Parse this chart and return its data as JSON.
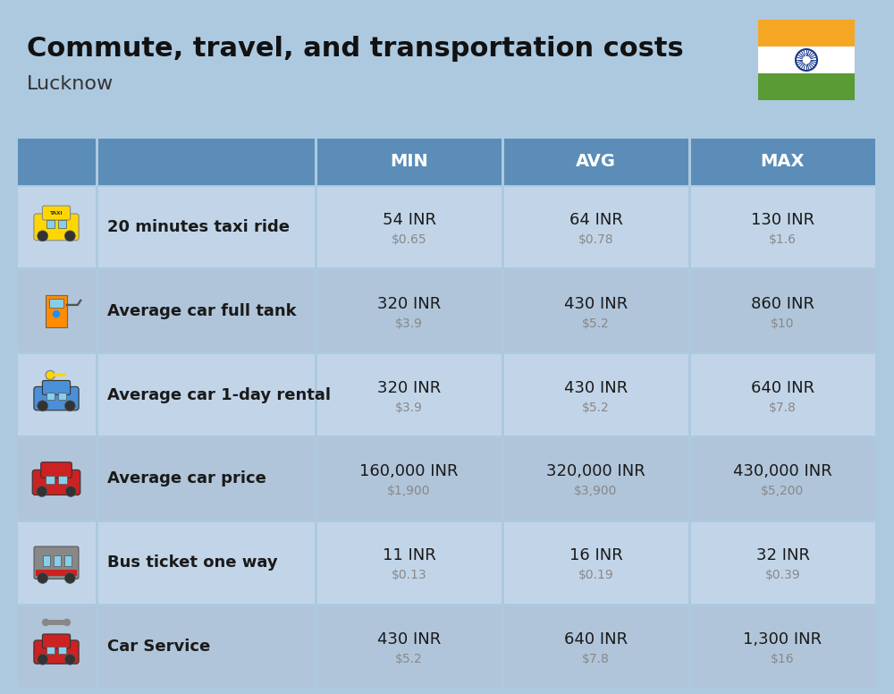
{
  "title": "Commute, travel, and transportation costs",
  "subtitle": "Lucknow",
  "background_color": "#ADC9E0",
  "header_bg_color": "#5B8DB8",
  "row_bg_color_1": "#C2D5E8",
  "row_bg_color_2": "#B0C5DA",
  "header_text_color": "#FFFFFF",
  "cell_text_color": "#1a1a1a",
  "usd_text_color": "#888888",
  "col_headers": [
    "MIN",
    "AVG",
    "MAX"
  ],
  "rows": [
    {
      "label": "20 minutes taxi ride",
      "values": [
        "54 INR",
        "64 INR",
        "130 INR"
      ],
      "usd": [
        "$0.65",
        "$0.78",
        "$1.6"
      ]
    },
    {
      "label": "Average car full tank",
      "values": [
        "320 INR",
        "430 INR",
        "860 INR"
      ],
      "usd": [
        "$3.9",
        "$5.2",
        "$10"
      ]
    },
    {
      "label": "Average car 1-day rental",
      "values": [
        "320 INR",
        "430 INR",
        "640 INR"
      ],
      "usd": [
        "$3.9",
        "$5.2",
        "$7.8"
      ]
    },
    {
      "label": "Average car price",
      "values": [
        "160,000 INR",
        "320,000 INR",
        "430,000 INR"
      ],
      "usd": [
        "$1,900",
        "$3,900",
        "$5,200"
      ]
    },
    {
      "label": "Bus ticket one way",
      "values": [
        "11 INR",
        "16 INR",
        "32 INR"
      ],
      "usd": [
        "$0.13",
        "$0.19",
        "$0.39"
      ]
    },
    {
      "label": "Car Service",
      "values": [
        "430 INR",
        "640 INR",
        "1,300 INR"
      ],
      "usd": [
        "$5.2",
        "$7.8",
        "$16"
      ]
    }
  ],
  "flag_orange": "#F5A623",
  "flag_white": "#FFFFFF",
  "flag_green": "#5B9B35",
  "flag_chakra": "#1A3A8F"
}
